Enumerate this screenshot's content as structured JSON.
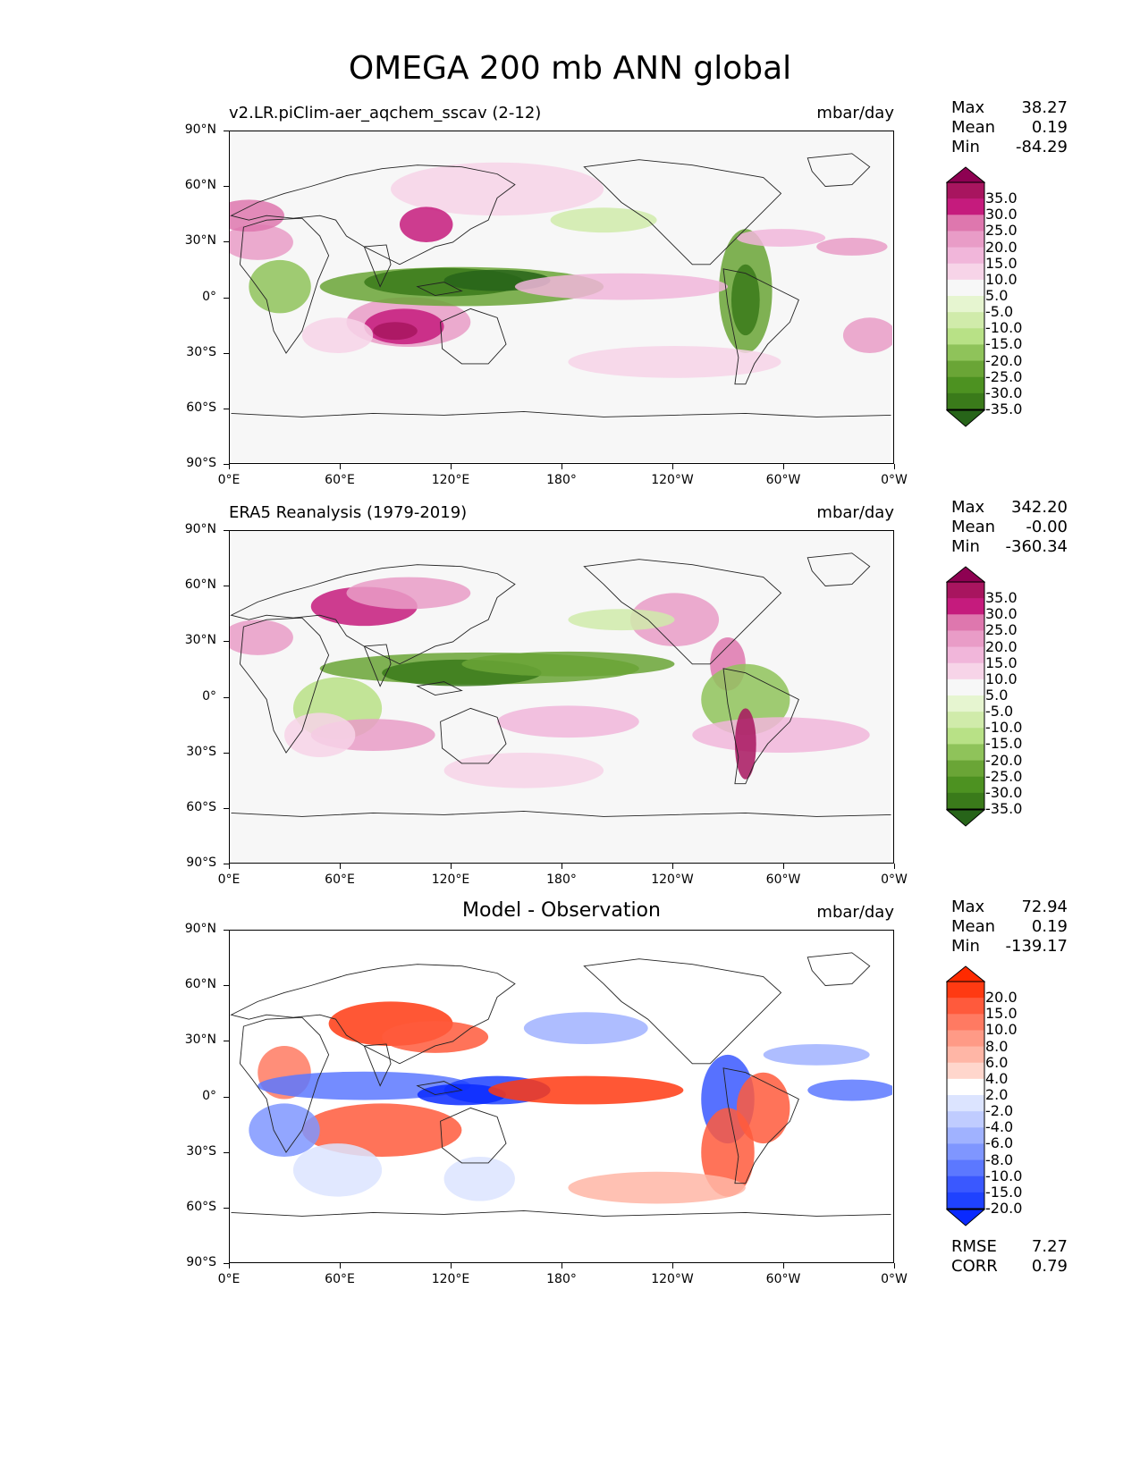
{
  "title": "OMEGA 200 mb ANN global",
  "lat_ticks": [
    "90°N",
    "60°N",
    "30°N",
    "0°",
    "30°S",
    "60°S",
    "90°S"
  ],
  "lon_ticks": [
    "0°E",
    "60°E",
    "120°E",
    "180°",
    "120°W",
    "60°W",
    "0°W"
  ],
  "panels": [
    {
      "title": "v2.LR.piClim-aer_aqchem_sscav (2-12)",
      "units": "mbar/day",
      "stats": [
        [
          "Max",
          "38.27"
        ],
        [
          "Mean",
          "0.19"
        ],
        [
          "Min",
          "-84.29"
        ]
      ],
      "colorbar": {
        "labels": [
          "35.0",
          "30.0",
          "25.0",
          "20.0",
          "15.0",
          "10.0",
          "5.0",
          "-5.0",
          "-10.0",
          "-15.0",
          "-20.0",
          "-25.0",
          "-30.0",
          "-35.0"
        ],
        "colors": [
          "#8e0152",
          "#a8155f",
          "#c51b7d",
          "#de77ae",
          "#e99cc7",
          "#f1b6da",
          "#f7d4e8",
          "#f7f7f7",
          "#e6f5d0",
          "#d0ebaa",
          "#b8e186",
          "#8fc35a",
          "#6aa536",
          "#4d9221",
          "#3a7a1a",
          "#276419"
        ]
      }
    },
    {
      "title": "ERA5 Reanalysis (1979-2019)",
      "units": "mbar/day",
      "stats": [
        [
          "Max",
          "342.20"
        ],
        [
          "Mean",
          "-0.00"
        ],
        [
          "Min",
          "-360.34"
        ]
      ],
      "colorbar": {
        "labels": [
          "35.0",
          "30.0",
          "25.0",
          "20.0",
          "15.0",
          "10.0",
          "5.0",
          "-5.0",
          "-10.0",
          "-15.0",
          "-20.0",
          "-25.0",
          "-30.0",
          "-35.0"
        ],
        "colors": [
          "#8e0152",
          "#a8155f",
          "#c51b7d",
          "#de77ae",
          "#e99cc7",
          "#f1b6da",
          "#f7d4e8",
          "#f7f7f7",
          "#e6f5d0",
          "#d0ebaa",
          "#b8e186",
          "#8fc35a",
          "#6aa536",
          "#4d9221",
          "#3a7a1a",
          "#276419"
        ]
      }
    },
    {
      "title": "Model - Observation",
      "units": "mbar/day",
      "stats": [
        [
          "Max",
          "72.94"
        ],
        [
          "Mean",
          "0.19"
        ],
        [
          "Min",
          "-139.17"
        ]
      ],
      "extra_stats": [
        [
          "RMSE",
          "7.27"
        ],
        [
          "CORR",
          "0.79"
        ]
      ],
      "colorbar": {
        "labels": [
          "20.0",
          "15.0",
          "10.0",
          "8.0",
          "6.0",
          "4.0",
          "2.0",
          "-2.0",
          "-4.0",
          "-6.0",
          "-8.0",
          "-10.0",
          "-15.0",
          "-20.0"
        ],
        "colors": [
          "#ff2a00",
          "#ff3a12",
          "#ff5a3c",
          "#ff7a62",
          "#ff9a86",
          "#ffb6a6",
          "#ffd6cc",
          "#ffffff",
          "#dce4ff",
          "#c0ccff",
          "#a0b2ff",
          "#7f96ff",
          "#5c78ff",
          "#3a58ff",
          "#1f42ff",
          "#0a2aff"
        ]
      }
    }
  ]
}
